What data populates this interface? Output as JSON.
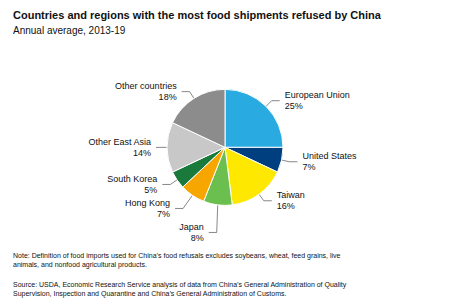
{
  "chart_data": {
    "type": "pie",
    "title": "Countries and regions with the most food shipments refused by China",
    "subtitle": "Annual average, 2013-19",
    "note": "Note: Definition of food imports used for China’s food refusals excludes soybeans, wheat, feed grains, live\nanimals, and nonfood agricultural products.",
    "source": "Source: USDA, Economic Research Service analysis of data from China’s General Administration of Quality\nSupervision, Inspection and Quarantine and China’s General Administration of Customs.",
    "categories": [
      "European Union",
      "United States",
      "Taiwan",
      "Japan",
      "Hong Kong",
      "South Korea",
      "Other East Asia",
      "Other countries"
    ],
    "values": [
      25,
      7,
      16,
      8,
      7,
      5,
      14,
      18
    ],
    "value_labels": [
      "25%",
      "7%",
      "16%",
      "8%",
      "7%",
      "5%",
      "14%",
      "18%"
    ],
    "colors": [
      "#29ABE2",
      "#003F7F",
      "#FFE800",
      "#6BBF4E",
      "#F7A600",
      "#1A7A3C",
      "#C8C8C8",
      "#8C8C8C"
    ]
  }
}
